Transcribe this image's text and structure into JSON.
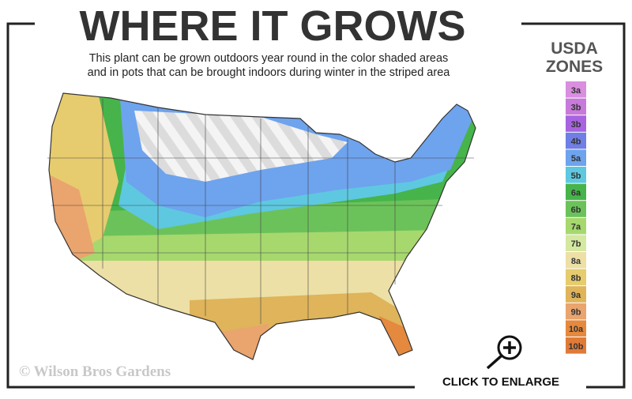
{
  "header": {
    "title": "WHERE IT GROWS",
    "subtitle_lines": [
      "This plant can be grown outdoors year round in the color shaded areas",
      "and in pots that can be brought indoors during winter in the striped area"
    ]
  },
  "legend": {
    "title_lines": [
      "USDA",
      "ZONES"
    ],
    "zones": [
      {
        "label": "3a",
        "color": "#d98ee0"
      },
      {
        "label": "3b",
        "color": "#c77ad9"
      },
      {
        "label": "3b",
        "color": "#a864e0"
      },
      {
        "label": "4b",
        "color": "#6f7fe6"
      },
      {
        "label": "5a",
        "color": "#6ea3ee"
      },
      {
        "label": "5b",
        "color": "#5ec8e0"
      },
      {
        "label": "6a",
        "color": "#46b44a"
      },
      {
        "label": "6b",
        "color": "#6cc25a"
      },
      {
        "label": "7a",
        "color": "#a6d86e"
      },
      {
        "label": "7b",
        "color": "#d4e8a0"
      },
      {
        "label": "8a",
        "color": "#ede0a6"
      },
      {
        "label": "8b",
        "color": "#e6cc6e"
      },
      {
        "label": "9a",
        "color": "#dfb45a"
      },
      {
        "label": "9b",
        "color": "#eaa46e"
      },
      {
        "label": "10a",
        "color": "#e5893e"
      },
      {
        "label": "10b",
        "color": "#e07a38"
      }
    ]
  },
  "footer": {
    "copyright": "© Wilson Bros Gardens",
    "action": "CLICK TO ENLARGE"
  }
}
